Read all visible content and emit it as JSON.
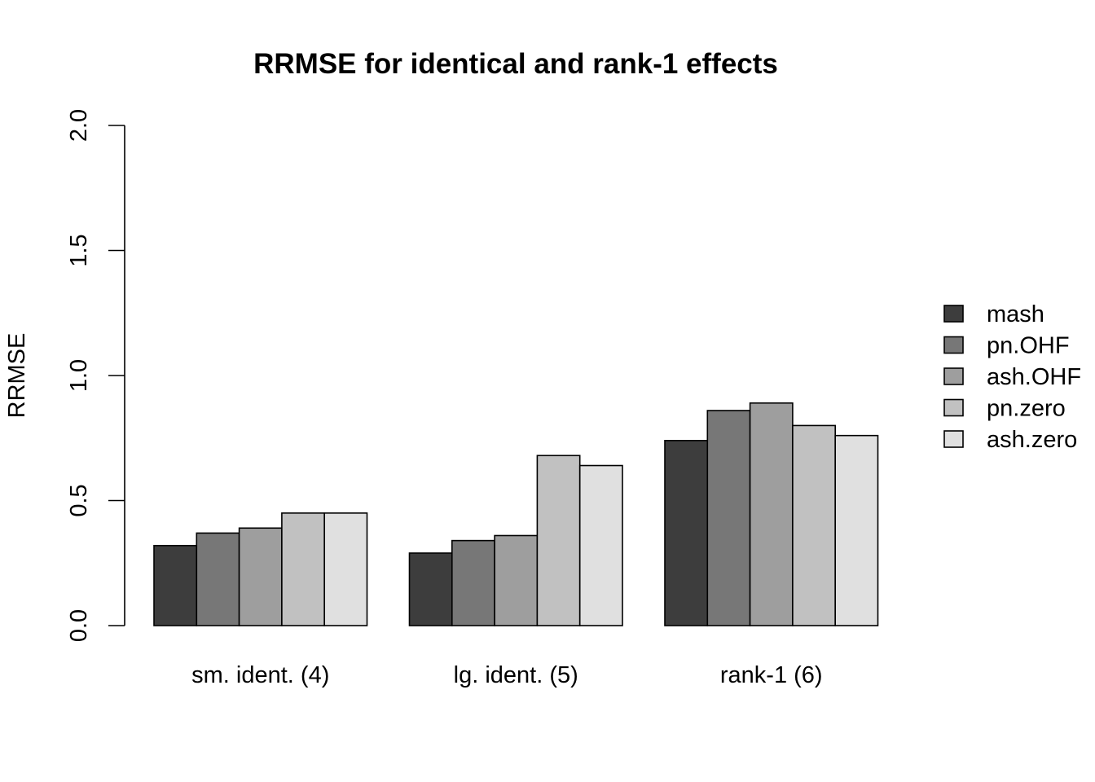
{
  "chart_data": {
    "type": "bar",
    "title": "RRMSE for identical and rank-1 effects",
    "xlabel": "",
    "ylabel": "RRMSE",
    "ylim": [
      0,
      2
    ],
    "yticks": [
      "0.0",
      "0.5",
      "1.0",
      "1.5",
      "2.0"
    ],
    "categories": [
      "sm. ident. (4)",
      "lg. ident. (5)",
      "rank-1 (6)"
    ],
    "series": [
      {
        "name": "mash",
        "color": "#3d3d3d",
        "values": [
          0.32,
          0.29,
          0.74
        ]
      },
      {
        "name": "pn.OHF",
        "color": "#777777",
        "values": [
          0.37,
          0.34,
          0.86
        ]
      },
      {
        "name": "ash.OHF",
        "color": "#9e9e9e",
        "values": [
          0.39,
          0.36,
          0.89
        ]
      },
      {
        "name": "pn.zero",
        "color": "#c1c1c1",
        "values": [
          0.45,
          0.68,
          0.8
        ]
      },
      {
        "name": "ash.zero",
        "color": "#e0e0e0",
        "values": [
          0.45,
          0.64,
          0.76
        ]
      }
    ],
    "grid": false,
    "legend_position": "right"
  }
}
